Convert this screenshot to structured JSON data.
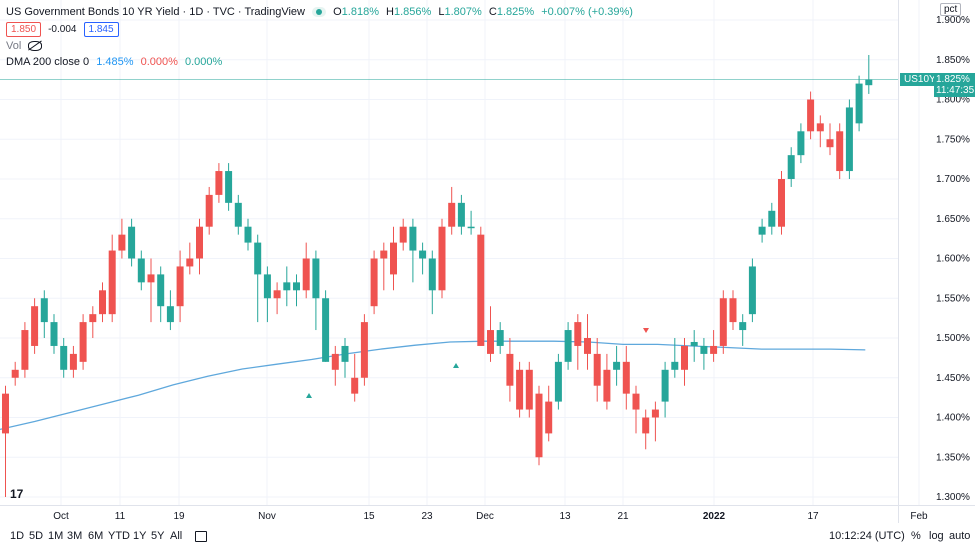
{
  "header": {
    "title": "US Government Bonds 10 YR Yield · 1D · TVC · TradingView",
    "ohlc": {
      "o_label": "O",
      "o": "1.818%",
      "h_label": "H",
      "h": "1.856%",
      "l_label": "L",
      "l": "1.807%",
      "c_label": "C",
      "c": "1.825%",
      "chg": "+0.007% (+0.39%)"
    },
    "sell_price": "1.850",
    "spread": "-0.004",
    "buy_price": "1.845",
    "vol_label": "Vol",
    "dma_label": "DMA 200 close 0",
    "dma_value_1": "1.485%",
    "dma_value_2": "0.000%",
    "dma_value_3": "0.000%"
  },
  "price_axis": {
    "unit_label": "pct",
    "ticks": [
      "1.900%",
      "1.850%",
      "1.800%",
      "1.750%",
      "1.700%",
      "1.650%",
      "1.600%",
      "1.550%",
      "1.500%",
      "1.450%",
      "1.400%",
      "1.350%",
      "1.300%"
    ],
    "symbol_tag": "US10Y",
    "last_price": "1.825%",
    "countdown": "11:47:35"
  },
  "time_axis": {
    "ticks": [
      "Oct",
      "11",
      "19",
      "Nov",
      "15",
      "23",
      "Dec",
      "13",
      "21",
      "2022",
      "17",
      "Feb"
    ]
  },
  "toolbar": {
    "ranges": [
      "1D",
      "5D",
      "1M",
      "3M",
      "6M",
      "YTD",
      "1Y",
      "5Y",
      "All"
    ],
    "clock": "10:12:24 (UTC)",
    "percent": "%",
    "log": "log",
    "auto": "auto"
  },
  "colors": {
    "up": "#26a69a",
    "down": "#ef5350",
    "ma": "#5fa8dc",
    "grid": "#f0f3fa"
  },
  "chart_data": {
    "type": "candlestick",
    "title": "US Government Bonds 10 YR Yield",
    "ylabel": "pct",
    "ylim": [
      1.3,
      1.9
    ],
    "series": [
      {
        "name": "US10Y",
        "candles": [
          [
            1.43,
            1.38,
            1.44,
            1.3
          ],
          [
            1.46,
            1.45,
            1.47,
            1.44
          ],
          [
            1.51,
            1.46,
            1.52,
            1.45
          ],
          [
            1.54,
            1.49,
            1.55,
            1.48
          ],
          [
            1.52,
            1.55,
            1.56,
            1.5
          ],
          [
            1.49,
            1.52,
            1.53,
            1.48
          ],
          [
            1.46,
            1.49,
            1.5,
            1.45
          ],
          [
            1.48,
            1.46,
            1.49,
            1.45
          ],
          [
            1.52,
            1.47,
            1.53,
            1.46
          ],
          [
            1.53,
            1.52,
            1.54,
            1.5
          ],
          [
            1.56,
            1.53,
            1.57,
            1.52
          ],
          [
            1.61,
            1.53,
            1.63,
            1.52
          ],
          [
            1.63,
            1.61,
            1.65,
            1.6
          ],
          [
            1.6,
            1.64,
            1.65,
            1.59
          ],
          [
            1.57,
            1.6,
            1.61,
            1.56
          ],
          [
            1.58,
            1.57,
            1.6,
            1.52
          ],
          [
            1.54,
            1.58,
            1.59,
            1.52
          ],
          [
            1.52,
            1.54,
            1.56,
            1.51
          ],
          [
            1.59,
            1.54,
            1.61,
            1.52
          ],
          [
            1.6,
            1.59,
            1.62,
            1.58
          ],
          [
            1.64,
            1.6,
            1.65,
            1.58
          ],
          [
            1.68,
            1.64,
            1.69,
            1.63
          ],
          [
            1.71,
            1.68,
            1.72,
            1.67
          ],
          [
            1.67,
            1.71,
            1.72,
            1.66
          ],
          [
            1.64,
            1.67,
            1.68,
            1.63
          ],
          [
            1.62,
            1.64,
            1.65,
            1.61
          ],
          [
            1.58,
            1.62,
            1.63,
            1.52
          ],
          [
            1.55,
            1.58,
            1.59,
            1.52
          ],
          [
            1.56,
            1.55,
            1.57,
            1.53
          ],
          [
            1.56,
            1.57,
            1.59,
            1.54
          ],
          [
            1.56,
            1.57,
            1.58,
            1.54
          ],
          [
            1.6,
            1.56,
            1.62,
            1.55
          ],
          [
            1.55,
            1.6,
            1.61,
            1.51
          ],
          [
            1.47,
            1.55,
            1.56,
            1.47
          ],
          [
            1.48,
            1.46,
            1.49,
            1.44
          ],
          [
            1.47,
            1.49,
            1.5,
            1.45
          ],
          [
            1.45,
            1.43,
            1.48,
            1.42
          ],
          [
            1.52,
            1.45,
            1.53,
            1.44
          ],
          [
            1.6,
            1.54,
            1.61,
            1.53
          ],
          [
            1.61,
            1.6,
            1.62,
            1.56
          ],
          [
            1.62,
            1.58,
            1.64,
            1.56
          ],
          [
            1.64,
            1.62,
            1.65,
            1.61
          ],
          [
            1.61,
            1.64,
            1.65,
            1.57
          ],
          [
            1.6,
            1.61,
            1.62,
            1.58
          ],
          [
            1.56,
            1.6,
            1.61,
            1.53
          ],
          [
            1.64,
            1.56,
            1.65,
            1.55
          ],
          [
            1.67,
            1.64,
            1.69,
            1.63
          ],
          [
            1.64,
            1.67,
            1.68,
            1.63
          ],
          [
            1.64,
            1.64,
            1.66,
            1.63
          ],
          [
            1.63,
            1.49,
            1.64,
            1.49
          ],
          [
            1.51,
            1.48,
            1.54,
            1.47
          ],
          [
            1.49,
            1.51,
            1.52,
            1.48
          ],
          [
            1.48,
            1.44,
            1.5,
            1.42
          ],
          [
            1.46,
            1.41,
            1.47,
            1.4
          ],
          [
            1.46,
            1.41,
            1.47,
            1.4
          ],
          [
            1.43,
            1.35,
            1.44,
            1.34
          ],
          [
            1.42,
            1.38,
            1.44,
            1.37
          ],
          [
            1.42,
            1.47,
            1.48,
            1.41
          ],
          [
            1.47,
            1.51,
            1.52,
            1.46
          ],
          [
            1.52,
            1.49,
            1.53,
            1.46
          ],
          [
            1.5,
            1.48,
            1.53,
            1.46
          ],
          [
            1.48,
            1.44,
            1.5,
            1.42
          ],
          [
            1.46,
            1.42,
            1.48,
            1.41
          ],
          [
            1.46,
            1.47,
            1.49,
            1.44
          ],
          [
            1.47,
            1.43,
            1.49,
            1.41
          ],
          [
            1.43,
            1.41,
            1.44,
            1.38
          ],
          [
            1.4,
            1.38,
            1.41,
            1.36
          ],
          [
            1.41,
            1.4,
            1.42,
            1.37
          ],
          [
            1.42,
            1.46,
            1.47,
            1.4
          ],
          [
            1.46,
            1.47,
            1.5,
            1.45
          ],
          [
            1.49,
            1.46,
            1.5,
            1.44
          ],
          [
            1.49,
            1.495,
            1.51,
            1.47
          ],
          [
            1.48,
            1.49,
            1.5,
            1.46
          ],
          [
            1.49,
            1.48,
            1.51,
            1.47
          ],
          [
            1.55,
            1.49,
            1.56,
            1.48
          ],
          [
            1.55,
            1.52,
            1.56,
            1.51
          ],
          [
            1.51,
            1.52,
            1.53,
            1.49
          ],
          [
            1.53,
            1.59,
            1.6,
            1.52
          ],
          [
            1.63,
            1.64,
            1.65,
            1.62
          ],
          [
            1.64,
            1.66,
            1.67,
            1.63
          ],
          [
            1.7,
            1.64,
            1.71,
            1.63
          ],
          [
            1.7,
            1.73,
            1.74,
            1.69
          ],
          [
            1.73,
            1.76,
            1.77,
            1.72
          ],
          [
            1.8,
            1.76,
            1.81,
            1.75
          ],
          [
            1.77,
            1.76,
            1.78,
            1.74
          ],
          [
            1.75,
            1.74,
            1.77,
            1.73
          ],
          [
            1.76,
            1.71,
            1.77,
            1.7
          ],
          [
            1.71,
            1.79,
            1.8,
            1.7
          ],
          [
            1.77,
            1.82,
            1.83,
            1.76
          ],
          [
            1.818,
            1.825,
            1.856,
            1.807
          ]
        ]
      },
      {
        "name": "DMA 200 close 0",
        "values": [
          1.385,
          1.395,
          1.406,
          1.417,
          1.428,
          1.441,
          1.452,
          1.461,
          1.467,
          1.473,
          1.48,
          1.486,
          1.491,
          1.495,
          1.496,
          1.496,
          1.496,
          1.495,
          1.492,
          1.492,
          1.49,
          1.488,
          1.486,
          1.486,
          1.486,
          1.485
        ]
      }
    ]
  }
}
